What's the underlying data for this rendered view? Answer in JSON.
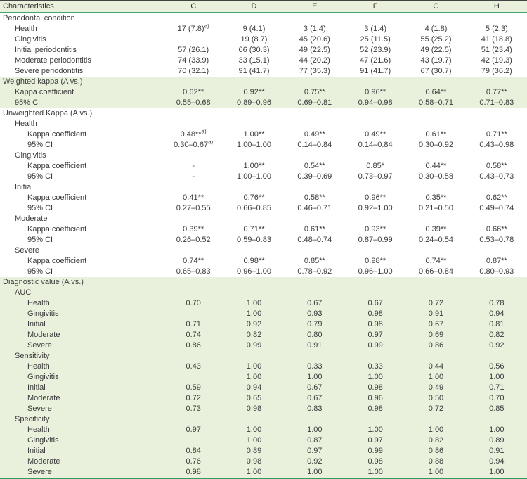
{
  "colors": {
    "section_background": "#e9f1dd",
    "accent_green_rule": "#45a56a",
    "bottom_green_rule": "#2f9c60",
    "top_dark_rule": "#424242",
    "text": "#3b3b3b"
  },
  "table": {
    "columns": [
      "Characteristics",
      "C",
      "D",
      "E",
      "F",
      "G",
      "H"
    ],
    "rows": [
      {
        "label": "Periodontal condition",
        "level": 0,
        "green": false,
        "cells": [
          "",
          "",
          "",
          "",
          "",
          ""
        ]
      },
      {
        "label": "Health",
        "level": 1,
        "green": false,
        "cells": [
          "17 (7.8)^a)",
          "9 (4.1)",
          "3 (1.4)",
          "3 (1.4)",
          "4 (1.8)",
          "5 (2.3)"
        ]
      },
      {
        "label": "Gingivitis",
        "level": 1,
        "green": false,
        "cells": [
          "",
          "19 (8.7)",
          "45 (20.6)",
          "25 (11.5)",
          "55 (25.2)",
          "41 (18.8)"
        ]
      },
      {
        "label": "Initial periodontitis",
        "level": 1,
        "green": false,
        "cells": [
          "57 (26.1)",
          "66 (30.3)",
          "49 (22.5)",
          "52 (23.9)",
          "49 (22.5)",
          "51 (23.4)"
        ]
      },
      {
        "label": "Moderate periodontitis",
        "level": 1,
        "green": false,
        "cells": [
          "74 (33.9)",
          "33 (15.1)",
          "44 (20.2)",
          "47 (21.6)",
          "43 (19.7)",
          "42 (19.3)"
        ]
      },
      {
        "label": "Severe periodontitis",
        "level": 1,
        "green": false,
        "cells": [
          "70 (32.1)",
          "91 (41.7)",
          "77 (35.3)",
          "91 (41.7)",
          "67 (30.7)",
          "79 (36.2)"
        ]
      },
      {
        "label": "Weighted kappa (A vs.)",
        "level": 0,
        "green": true,
        "cells": [
          "",
          "",
          "",
          "",
          "",
          ""
        ]
      },
      {
        "label": "Kappa coefficient",
        "level": 1,
        "green": true,
        "cells": [
          "0.62**",
          "0.92**",
          "0.75**",
          "0.96**",
          "0.64**",
          "0.77**"
        ]
      },
      {
        "label": "95% CI",
        "level": 1,
        "green": true,
        "cells": [
          "0.55–0.68",
          "0.89–0.96",
          "0.69–0.81",
          "0.94–0.98",
          "0.58–0.71",
          "0.71–0.83"
        ]
      },
      {
        "label": "Unweighted Kappa (A vs.)",
        "level": 0,
        "green": false,
        "cells": [
          "",
          "",
          "",
          "",
          "",
          ""
        ]
      },
      {
        "label": "Health",
        "level": 1,
        "green": false,
        "cells": [
          "",
          "",
          "",
          "",
          "",
          ""
        ]
      },
      {
        "label": "Kappa coefficient",
        "level": 2,
        "green": false,
        "cells": [
          "0.48**^a)",
          "1.00**",
          "0.49**",
          "0.49**",
          "0.61**",
          "0.71**"
        ]
      },
      {
        "label": "95% CI",
        "level": 2,
        "green": false,
        "cells": [
          "0.30–0.67^a)",
          "1.00–1.00",
          "0.14–0.84",
          "0.14–0.84",
          "0.30–0.92",
          "0.43–0.98"
        ]
      },
      {
        "label": "Gingivitis",
        "level": 1,
        "green": false,
        "cells": [
          "",
          "",
          "",
          "",
          "",
          ""
        ]
      },
      {
        "label": "Kappa coefficient",
        "level": 2,
        "green": false,
        "cells": [
          "-",
          "1.00**",
          "0.54**",
          "0.85*",
          "0.44**",
          "0.58**"
        ]
      },
      {
        "label": "95% CI",
        "level": 2,
        "green": false,
        "cells": [
          "-",
          "1.00–1.00",
          "0.39–0.69",
          "0.73–0.97",
          "0.30–0.58",
          "0.43–0.73"
        ]
      },
      {
        "label": "Initial",
        "level": 1,
        "green": false,
        "cells": [
          "",
          "",
          "",
          "",
          "",
          ""
        ]
      },
      {
        "label": "Kappa coefficient",
        "level": 2,
        "green": false,
        "cells": [
          "0.41**",
          "0.76**",
          "0.58**",
          "0.96**",
          "0.35**",
          "0.62**"
        ]
      },
      {
        "label": "95% CI",
        "level": 2,
        "green": false,
        "cells": [
          "0.27–0.55",
          "0.66–0.85",
          "0.46–0.71",
          "0.92–1.00",
          "0.21–0.50",
          "0.49–0.74"
        ]
      },
      {
        "label": "Moderate",
        "level": 1,
        "green": false,
        "cells": [
          "",
          "",
          "",
          "",
          "",
          ""
        ]
      },
      {
        "label": "Kappa coefficient",
        "level": 2,
        "green": false,
        "cells": [
          "0.39**",
          "0.71**",
          "0.61**",
          "0.93**",
          "0.39**",
          "0.66**"
        ]
      },
      {
        "label": "95% CI",
        "level": 2,
        "green": false,
        "cells": [
          "0.26–0.52",
          "0.59–0.83",
          "0.48–0.74",
          "0.87–0.99",
          "0.24–0.54",
          "0.53–0.78"
        ]
      },
      {
        "label": "Severe",
        "level": 1,
        "green": false,
        "cells": [
          "",
          "",
          "",
          "",
          "",
          ""
        ]
      },
      {
        "label": "Kappa coefficient",
        "level": 2,
        "green": false,
        "cells": [
          "0.74**",
          "0.98**",
          "0.85**",
          "0.98**",
          "0.74**",
          "0.87**"
        ]
      },
      {
        "label": "95% CI",
        "level": 2,
        "green": false,
        "cells": [
          "0.65–0.83",
          "0.96–1.00",
          "0.78–0.92",
          "0.96–1.00",
          "0.66–0.84",
          "0.80–0.93"
        ]
      },
      {
        "label": "Diagnostic value (A vs.)",
        "level": 0,
        "green": true,
        "cells": [
          "",
          "",
          "",
          "",
          "",
          ""
        ]
      },
      {
        "label": "AUC",
        "level": 1,
        "green": true,
        "cells": [
          "",
          "",
          "",
          "",
          "",
          ""
        ]
      },
      {
        "label": "Health",
        "level": 2,
        "green": true,
        "cells": [
          "0.70",
          "1.00",
          "0.67",
          "0.67",
          "0.72",
          "0.78"
        ]
      },
      {
        "label": "Gingivitis",
        "level": 2,
        "green": true,
        "cells": [
          "",
          "1.00",
          "0.93",
          "0.98",
          "0.91",
          "0.94"
        ]
      },
      {
        "label": "Initial",
        "level": 2,
        "green": true,
        "cells": [
          "0.71",
          "0.92",
          "0.79",
          "0.98",
          "0.67",
          "0.81"
        ]
      },
      {
        "label": "Moderate",
        "level": 2,
        "green": true,
        "cells": [
          "0.74",
          "0.82",
          "0.80",
          "0.97",
          "0.69",
          "0.82"
        ]
      },
      {
        "label": "Severe",
        "level": 2,
        "green": true,
        "cells": [
          "0.86",
          "0.99",
          "0.91",
          "0.99",
          "0.86",
          "0.92"
        ]
      },
      {
        "label": "Sensitivity",
        "level": 1,
        "green": true,
        "cells": [
          "",
          "",
          "",
          "",
          "",
          ""
        ]
      },
      {
        "label": "Health",
        "level": 2,
        "green": true,
        "cells": [
          "0.43",
          "1.00",
          "0.33",
          "0.33",
          "0.44",
          "0.56"
        ]
      },
      {
        "label": "Gingivitis",
        "level": 2,
        "green": true,
        "cells": [
          "",
          "1.00",
          "1.00",
          "1.00",
          "1.00",
          "1.00"
        ]
      },
      {
        "label": "Initial",
        "level": 2,
        "green": true,
        "cells": [
          "0.59",
          "0.94",
          "0.67",
          "0.98",
          "0.49",
          "0.71"
        ]
      },
      {
        "label": "Moderate",
        "level": 2,
        "green": true,
        "cells": [
          "0.72",
          "0.65",
          "0.67",
          "0.96",
          "0.50",
          "0.70"
        ]
      },
      {
        "label": "Severe",
        "level": 2,
        "green": true,
        "cells": [
          "0.73",
          "0.98",
          "0.83",
          "0.98",
          "0.72",
          "0.85"
        ]
      },
      {
        "label": "Specificity",
        "level": 1,
        "green": true,
        "cells": [
          "",
          "",
          "",
          "",
          "",
          ""
        ]
      },
      {
        "label": "Health",
        "level": 2,
        "green": true,
        "cells": [
          "0.97",
          "1.00",
          "1.00",
          "1.00",
          "1.00",
          "1.00"
        ]
      },
      {
        "label": "Gingivitis",
        "level": 2,
        "green": true,
        "cells": [
          "",
          "1.00",
          "0.87",
          "0.97",
          "0.82",
          "0.89"
        ]
      },
      {
        "label": "Initial",
        "level": 2,
        "green": true,
        "cells": [
          "0.84",
          "0.89",
          "0.97",
          "0.99",
          "0.86",
          "0.91"
        ]
      },
      {
        "label": "Moderate",
        "level": 2,
        "green": true,
        "cells": [
          "0.76",
          "0.98",
          "0.92",
          "0.98",
          "0.88",
          "0.94"
        ]
      },
      {
        "label": "Severe",
        "level": 2,
        "green": true,
        "cells": [
          "0.98",
          "1.00",
          "1.00",
          "1.00",
          "1.00",
          "1.00"
        ]
      }
    ]
  }
}
